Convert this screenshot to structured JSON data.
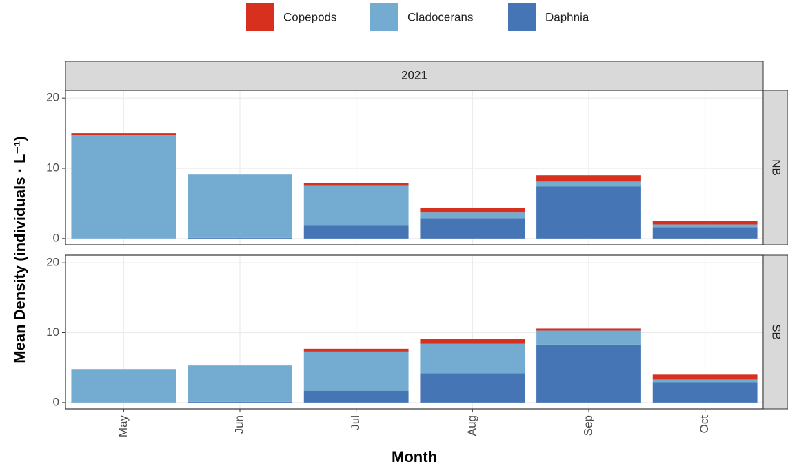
{
  "figure": {
    "strip": "2021",
    "x_label": "Month",
    "y_label": "Mean Density (individuals · L⁻¹)"
  },
  "chart_data": [
    {
      "type": "bar",
      "stacked": true,
      "panel": "NB",
      "categories": [
        "May",
        "Jun",
        "Jul",
        "Aug",
        "Sep",
        "Oct"
      ],
      "series": [
        {
          "name": "Copepods",
          "color": "#d7301f",
          "values": [
            0.3,
            0,
            0.3,
            0.7,
            0.9,
            0.5
          ]
        },
        {
          "name": "Cladocerans",
          "color": "#74acd1",
          "values": [
            14.7,
            9.0,
            5.7,
            0.8,
            0.7,
            0.4
          ]
        },
        {
          "name": "Daphnia",
          "color": "#4575b4",
          "values": [
            0,
            0.1,
            1.9,
            2.9,
            7.4,
            1.6
          ]
        }
      ],
      "ylim": [
        -0.9,
        21.1
      ],
      "yticks": [
        0,
        10,
        20
      ],
      "grid": true
    },
    {
      "type": "bar",
      "stacked": true,
      "panel": "SB",
      "categories": [
        "May",
        "Jun",
        "Jul",
        "Aug",
        "Sep",
        "Oct"
      ],
      "series": [
        {
          "name": "Copepods",
          "color": "#d7301f",
          "values": [
            0,
            0,
            0.4,
            0.7,
            0.3,
            0.7
          ]
        },
        {
          "name": "Cladocerans",
          "color": "#74acd1",
          "values": [
            4.8,
            5.2,
            5.6,
            4.2,
            2.0,
            0.4
          ]
        },
        {
          "name": "Daphnia",
          "color": "#4575b4",
          "values": [
            0,
            0.1,
            1.7,
            4.2,
            8.3,
            2.9
          ]
        }
      ],
      "ylim": [
        -0.9,
        21.1
      ],
      "yticks": [
        0,
        10,
        20
      ],
      "grid": true
    }
  ]
}
